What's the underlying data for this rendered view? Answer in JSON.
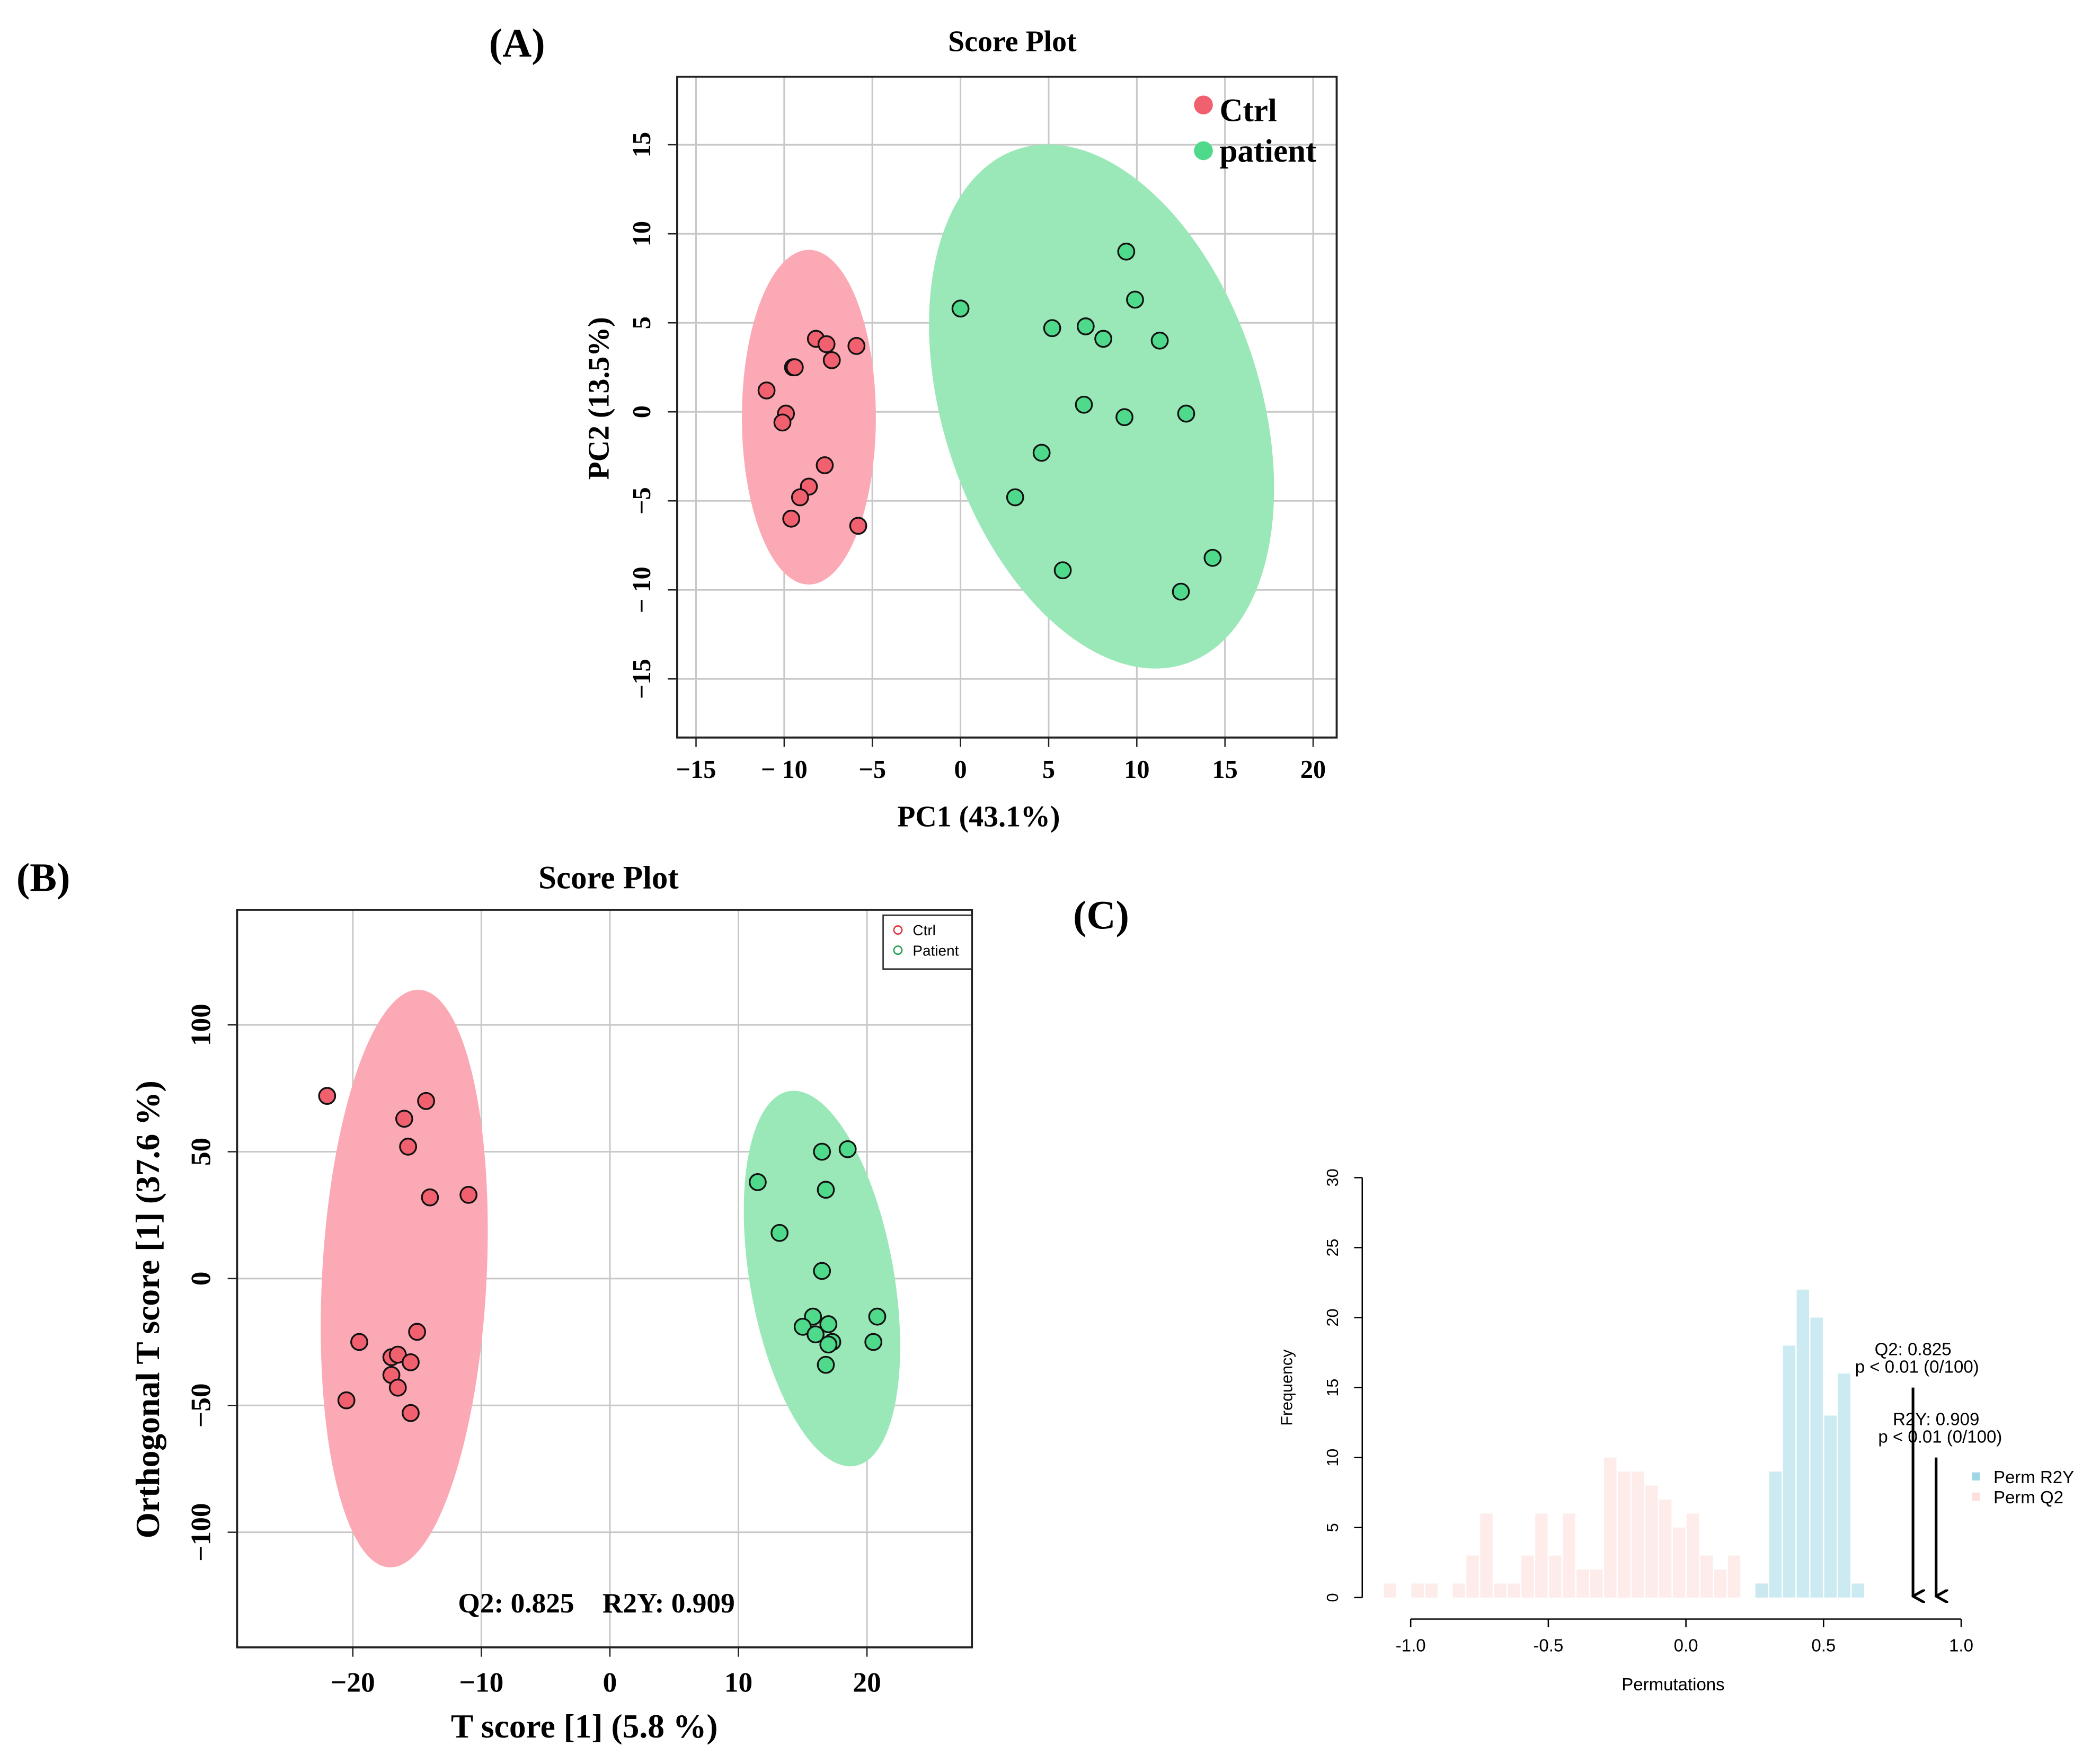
{
  "chart_data": [
    {
      "panel_label": "(A)",
      "type": "scatter",
      "title": "Score Plot",
      "xlabel": "PC1 (43.1%)",
      "ylabel": "PC2 (13.5%)",
      "xlim": [
        -16,
        21
      ],
      "ylim": [
        -18.5,
        18.5
      ],
      "xticks": [
        -15,
        -10,
        -5,
        0,
        5,
        10,
        15,
        20
      ],
      "yticks": [
        -15,
        -10,
        -5,
        0,
        5,
        10,
        15
      ],
      "xtick_labels": [
        "−15",
        "− 10",
        "−5",
        "0",
        "5",
        "10",
        "15",
        "20"
      ],
      "ytick_labels": [
        "−15",
        "− 10",
        "−5",
        "0",
        "5",
        "10",
        "15"
      ],
      "grid": true,
      "legend": {
        "placement": "top-right",
        "entries": [
          "Ctrl",
          "patient"
        ]
      },
      "series": [
        {
          "name": "Ctrl",
          "color": "#f0606f",
          "ellipse_color": "#fbaab5",
          "ellipse": {
            "cx": -8.6,
            "cy": -0.3,
            "rx": 3.8,
            "ry": 9.4,
            "angle": 0
          },
          "points": [
            [
              -8.2,
              4.1
            ],
            [
              -7.6,
              3.8
            ],
            [
              -7.3,
              2.9
            ],
            [
              -5.9,
              3.7
            ],
            [
              -9.5,
              2.5
            ],
            [
              -9.4,
              2.5
            ],
            [
              -11,
              1.2
            ],
            [
              -9.9,
              -0.1
            ],
            [
              -10.1,
              -0.6
            ],
            [
              -7.7,
              -3
            ],
            [
              -8.6,
              -4.2
            ],
            [
              -9.1,
              -4.8
            ],
            [
              -9.6,
              -6
            ],
            [
              -5.8,
              -6.4
            ]
          ]
        },
        {
          "name": "patient",
          "color": "#4fd98a",
          "ellipse_color": "#9ae8b7",
          "ellipse": {
            "cx": 8.0,
            "cy": 0.3,
            "rx": 9.0,
            "ry": 15.2,
            "angle": -18
          },
          "points": [
            [
              0,
              5.8
            ],
            [
              9.4,
              9
            ],
            [
              9.9,
              6.3
            ],
            [
              5.2,
              4.7
            ],
            [
              7.1,
              4.8
            ],
            [
              8.1,
              4.1
            ],
            [
              11.3,
              4
            ],
            [
              7,
              0.4
            ],
            [
              9.3,
              -0.3
            ],
            [
              12.8,
              -0.1
            ],
            [
              4.6,
              -2.3
            ],
            [
              3.1,
              -4.8
            ],
            [
              5.8,
              -8.9
            ],
            [
              14.3,
              -8.2
            ],
            [
              12.5,
              -10.1
            ]
          ]
        }
      ]
    },
    {
      "panel_label": "(B)",
      "type": "scatter",
      "title": "Score Plot",
      "xlabel": "T score [1] (5.8 %)",
      "ylabel": "Orthogonal T score [1] (37.6 %)",
      "xlim": [
        -29,
        28
      ],
      "ylim": [
        -145,
        145
      ],
      "xticks": [
        -20,
        -10,
        0,
        10,
        20
      ],
      "yticks": [
        -100,
        -50,
        0,
        50,
        100
      ],
      "xtick_labels": [
        "−20",
        "−10",
        "0",
        "10",
        "20"
      ],
      "ytick_labels": [
        "−100",
        "−50",
        "0",
        "50",
        "100"
      ],
      "grid": true,
      "annotation": "Q2: 0.825    R2Y: 0.909",
      "legend": {
        "placement": "top-right",
        "entries": [
          "Ctrl",
          "Patient"
        ]
      },
      "series": [
        {
          "name": "Ctrl",
          "color": "#f0606f",
          "legend_color": "#e0303a",
          "ellipse_color": "#fbaab5",
          "ellipse": {
            "cx": -16,
            "cy": 0,
            "rx": 6.4,
            "ry": 114,
            "angle": 3
          },
          "points": [
            [
              -22,
              72
            ],
            [
              -16,
              63
            ],
            [
              -14.3,
              70
            ],
            [
              -15.7,
              52
            ],
            [
              -14,
              32
            ],
            [
              -11,
              33
            ],
            [
              -19.5,
              -25
            ],
            [
              -15,
              -21
            ],
            [
              -17,
              -31
            ],
            [
              -16.5,
              -30
            ],
            [
              -15.5,
              -33
            ],
            [
              -17,
              -38
            ],
            [
              -16.5,
              -43
            ],
            [
              -20.5,
              -48
            ],
            [
              -15.5,
              -53
            ]
          ]
        },
        {
          "name": "Patient",
          "color": "#4fd98a",
          "legend_color": "#20a050",
          "ellipse_color": "#9ae8b7",
          "ellipse": {
            "cx": 16.5,
            "cy": 0,
            "rx": 5.6,
            "ry": 75,
            "angle": -10
          },
          "points": [
            [
              11.5,
              38
            ],
            [
              16.5,
              50
            ],
            [
              18.5,
              51
            ],
            [
              16.8,
              35
            ],
            [
              13.2,
              18
            ],
            [
              16.5,
              3
            ],
            [
              15.8,
              -15
            ],
            [
              15,
              -19
            ],
            [
              17,
              -18
            ],
            [
              20.8,
              -15
            ],
            [
              16,
              -22
            ],
            [
              17.3,
              -25
            ],
            [
              17,
              -26
            ],
            [
              20.5,
              -25
            ],
            [
              16.8,
              -34
            ]
          ]
        }
      ]
    },
    {
      "panel_label": "(C)",
      "type": "bar",
      "title": "",
      "xlabel": "Permutations",
      "ylabel": "Frequency",
      "xlim": [
        -1.1,
        1.0
      ],
      "ylim": [
        0,
        30
      ],
      "xticks": [
        -1.0,
        -0.5,
        0.0,
        0.5,
        1.0
      ],
      "xtick_labels": [
        "-1.0",
        "-0.5",
        "0.0",
        "0.5",
        "1.0"
      ],
      "yticks": [
        0,
        5,
        10,
        15,
        20,
        25,
        30
      ],
      "ytick_labels": [
        "0",
        "5",
        "10",
        "15",
        "20",
        "25",
        "30"
      ],
      "bin_width": 0.05,
      "legend": {
        "placement": "right",
        "entries": [
          "Perm R2Y",
          "Perm Q2"
        ]
      },
      "series": [
        {
          "name": "Perm Q2",
          "color": "#fdecea",
          "bins": [
            -1.1,
            -1.0,
            -0.95,
            -0.85,
            -0.8,
            -0.75,
            -0.7,
            -0.65,
            -0.6,
            -0.55,
            -0.5,
            -0.45,
            -0.4,
            -0.35,
            -0.3,
            -0.25,
            -0.2,
            -0.15,
            -0.1,
            -0.05,
            0.0,
            0.05,
            0.1,
            0.15,
            0.25
          ],
          "values": [
            1,
            1,
            1,
            1,
            3,
            6,
            1,
            1,
            3,
            6,
            3,
            6,
            2,
            2,
            10,
            9,
            9,
            8,
            7,
            5,
            6,
            3,
            2,
            3,
            1
          ]
        },
        {
          "name": "Perm R2Y",
          "color": "#c5e8ef",
          "bins": [
            0.25,
            0.3,
            0.35,
            0.4,
            0.45,
            0.5,
            0.55,
            0.6
          ],
          "values": [
            1,
            9,
            18,
            22,
            20,
            13,
            16,
            1
          ]
        }
      ],
      "annotations": [
        {
          "label1": "Q2: 0.825",
          "label2": "p < 0.01 (0/100)",
          "x": 0.825,
          "arrow_from": 15
        },
        {
          "label1": "R2Y: 0.909",
          "label2": "p < 0.01 (0/100)",
          "x": 0.909,
          "arrow_from": 10
        }
      ]
    }
  ]
}
